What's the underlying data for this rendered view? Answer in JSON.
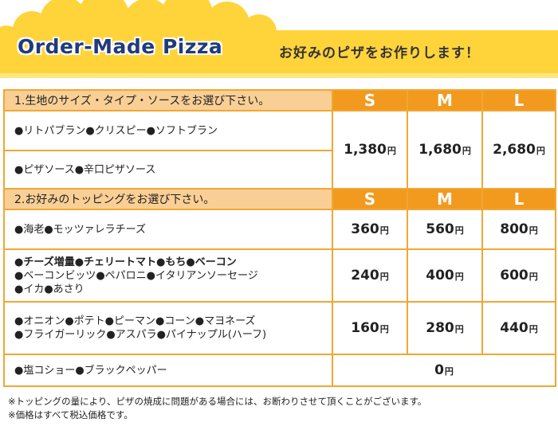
{
  "header": {
    "title_en": "Order-Made Pizza",
    "title_ja": "お好みのピザをお作りします！"
  },
  "section1": {
    "heading": "1.生地のサイズ・タイプ・ソースをお選び下さい。",
    "sizes": [
      "S",
      "M",
      "L"
    ],
    "row_a": "●リトパブラン●クリスピー●ソフトブラン",
    "row_b": "●ピザソース●辛口ピザソース",
    "prices": [
      "1,380",
      "1,680",
      "2,680"
    ]
  },
  "section2": {
    "heading": "2.お好みのトッピングをお選び下さい。",
    "sizes": [
      "S",
      "M",
      "L"
    ],
    "rows": [
      {
        "lines": [
          "●海老●モッツァレラチーズ"
        ],
        "prices": [
          "360",
          "560",
          "800"
        ]
      },
      {
        "lines": [
          "●チーズ増量●チェリートマト●もち●ベーコン",
          "●ベーコンビッツ●ペパロニ●イタリアンソーセージ",
          "●イカ●あさり"
        ],
        "prices": [
          "240",
          "400",
          "600"
        ]
      },
      {
        "lines": [
          "●オニオン●ポテト●ピーマン●コーン●マヨネーズ",
          "●フライガーリック●アスパラ●パイナップル(ハーフ)"
        ],
        "prices": [
          "160",
          "280",
          "440"
        ]
      },
      {
        "lines": [
          "●塩コショー●ブラックペッパー"
        ],
        "price_all": "0"
      }
    ]
  },
  "currency": "円",
  "notes": [
    "※トッピングの量により、ピザの焼成に問題がある場合には、お断わりさせて頂くことがございます。",
    "※価格はすべて税込価格です。"
  ],
  "colors": {
    "border": "#f0a733",
    "section_bg": "#f9cf95",
    "size_bg": "#f29a1e",
    "cloud": "#ffd43b",
    "title": "#1f3b7a"
  }
}
